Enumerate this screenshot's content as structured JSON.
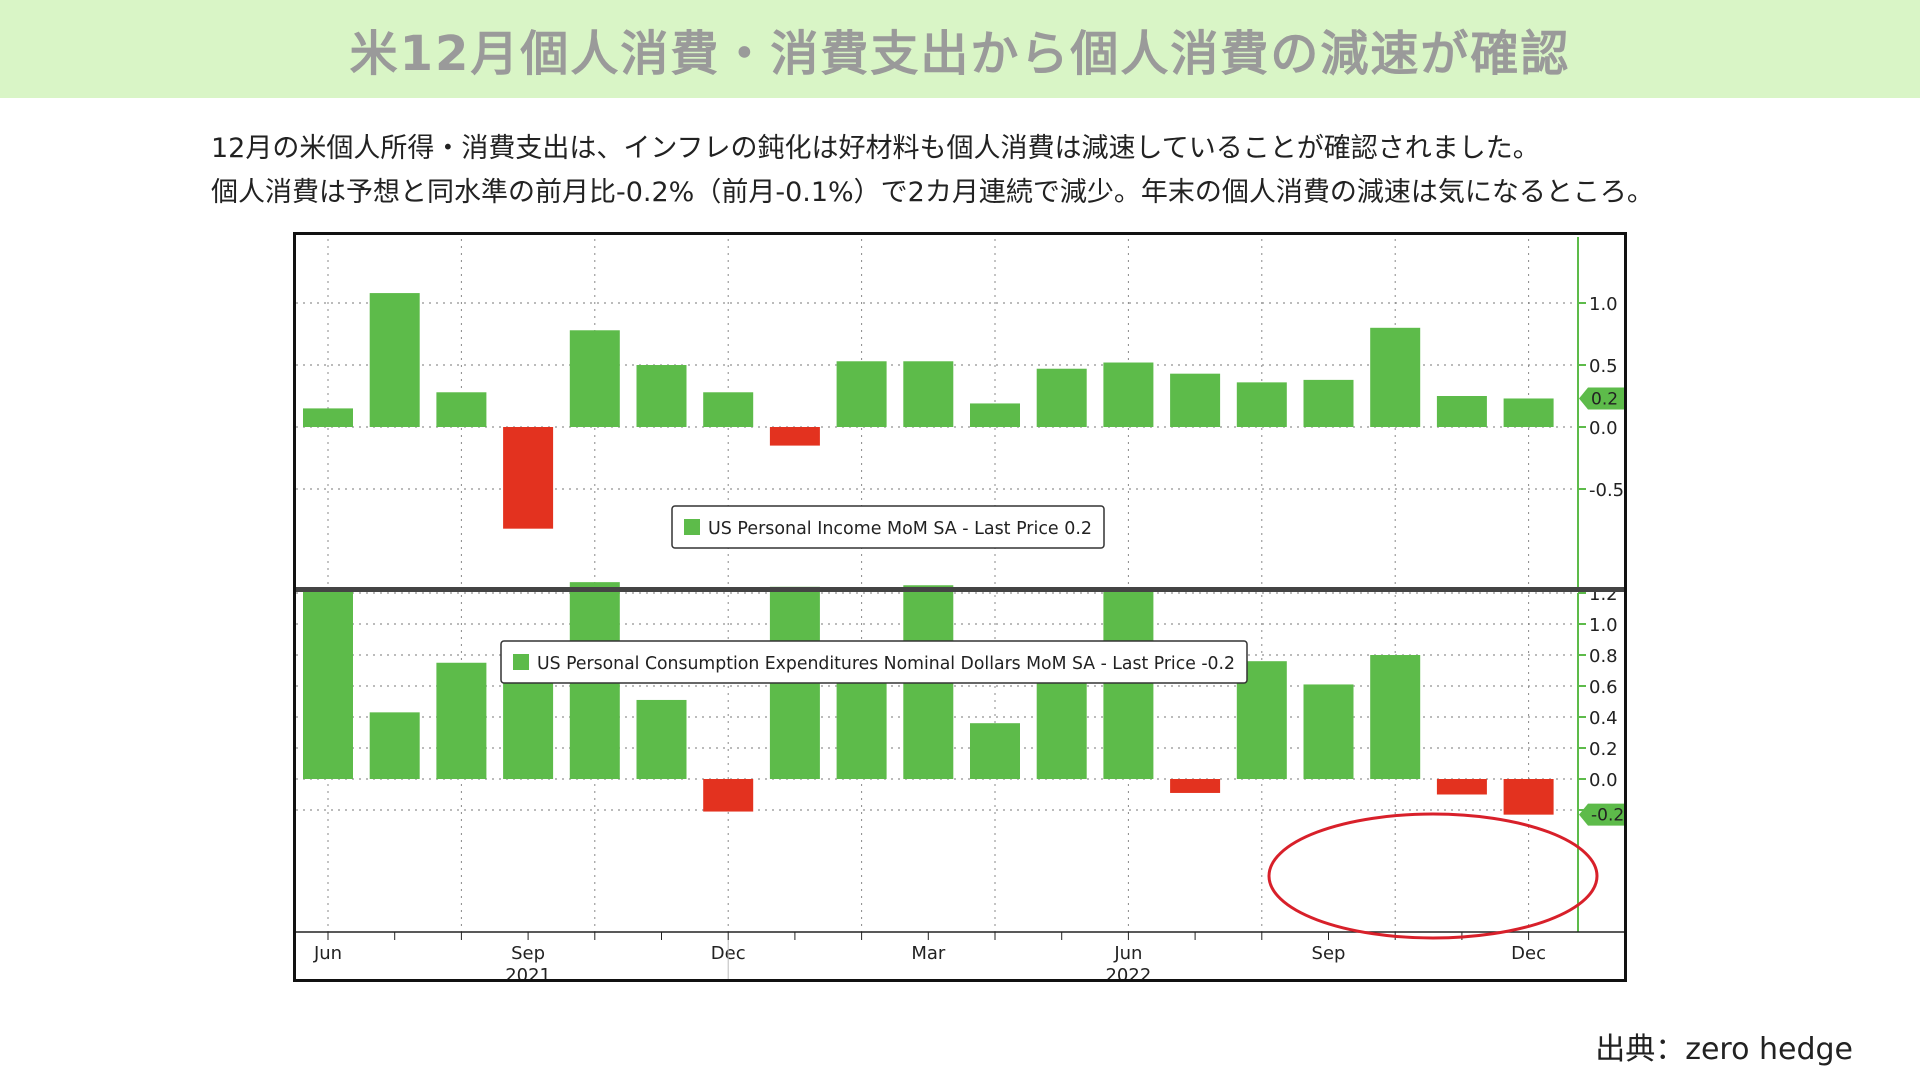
{
  "banner": {
    "title": "米12月個人消費・消費支出から個人消費の減速が確認"
  },
  "description": {
    "line1": "12月の米個人所得・消費支出は、インフレの鈍化は好材料も個人消費は減速していることが確認されました。",
    "line2": "個人消費は予想と同水準の前月比-0.2%（前月-0.1%）で2カ月連続で減少。年末の個人消費の減速は気になるところ。"
  },
  "source": "出典：zero hedge",
  "colors": {
    "positive": "#5dbb4a",
    "negative": "#e3321f",
    "highlight_circle": "#d8202a",
    "banner": "#d9f5c6"
  },
  "chart_data": [
    {
      "type": "bar",
      "legend": "US Personal Income MoM SA - Last Price 0.2",
      "last_price": "0.2",
      "categories": [
        "Jun 2021",
        "Jul 2021",
        "Aug 2021",
        "Sep 2021",
        "Oct 2021",
        "Nov 2021",
        "Dec 2021",
        "Jan 2022",
        "Feb 2022",
        "Mar 2022",
        "Apr 2022",
        "May 2022",
        "Jun 2022",
        "Jul 2022",
        "Aug 2022",
        "Sep 2022",
        "Oct 2022",
        "Nov 2022",
        "Dec 2022"
      ],
      "values": [
        0.15,
        1.08,
        0.28,
        -0.82,
        0.78,
        0.5,
        0.28,
        -0.15,
        0.53,
        0.53,
        0.19,
        0.47,
        0.52,
        0.43,
        0.36,
        0.38,
        0.8,
        0.25,
        0.23
      ],
      "yticks": [
        "1.0",
        "0.5",
        "0.0",
        "-0.5"
      ],
      "ylim": [
        -0.95,
        1.2
      ]
    },
    {
      "type": "bar",
      "legend": "US Personal Consumption Expenditures Nominal Dollars MoM SA - Last Price -0.2",
      "last_price": "-0.2",
      "categories": [
        "Jun 2021",
        "Jul 2021",
        "Aug 2021",
        "Sep 2021",
        "Oct 2021",
        "Nov 2021",
        "Dec 2021",
        "Jan 2022",
        "Feb 2022",
        "Mar 2022",
        "Apr 2022",
        "May 2022",
        "Jun 2022",
        "Jul 2022",
        "Aug 2022",
        "Sep 2022",
        "Oct 2022",
        "Nov 2022",
        "Dec 2022"
      ],
      "values": [
        1.23,
        0.43,
        0.75,
        0.76,
        1.27,
        0.51,
        -0.21,
        1.24,
        0.72,
        1.25,
        0.36,
        0.69,
        1.21,
        -0.09,
        0.76,
        0.61,
        0.8,
        -0.1,
        -0.23
      ],
      "yticks": [
        "1.2",
        "1.0",
        "0.8",
        "0.6",
        "0.4",
        "0.2",
        "0.0",
        "-0.2"
      ],
      "ylim": [
        -0.38,
        1.4
      ]
    }
  ],
  "x_axis": {
    "month_labels": [
      "Jun",
      "Sep",
      "Dec",
      "Mar",
      "Jun",
      "Sep",
      "Dec"
    ],
    "year_labels": [
      "2021",
      "2022"
    ]
  }
}
